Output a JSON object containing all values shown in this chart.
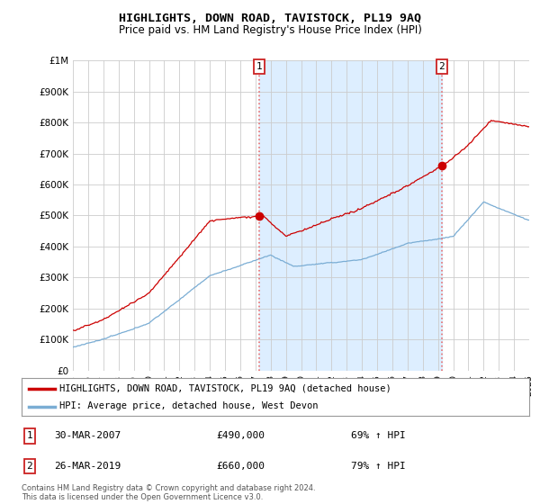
{
  "title": "HIGHLIGHTS, DOWN ROAD, TAVISTOCK, PL19 9AQ",
  "subtitle": "Price paid vs. HM Land Registry's House Price Index (HPI)",
  "ylim": [
    0,
    1000000
  ],
  "yticks": [
    0,
    100000,
    200000,
    300000,
    400000,
    500000,
    600000,
    700000,
    800000,
    900000,
    1000000
  ],
  "ytick_labels": [
    "£0",
    "£100K",
    "£200K",
    "£300K",
    "£400K",
    "£500K",
    "£600K",
    "£700K",
    "£800K",
    "£900K",
    "£1M"
  ],
  "hpi_color": "#7aadd4",
  "price_color": "#cc0000",
  "vline_color": "#e87070",
  "shade_color": "#ddeeff",
  "sale1_year": 2007.25,
  "sale1_val": 490000,
  "sale2_year": 2019.25,
  "sale2_val": 660000,
  "sale1_date": "30-MAR-2007",
  "sale1_price": "£490,000",
  "sale1_hpi": "69% ↑ HPI",
  "sale2_date": "26-MAR-2019",
  "sale2_price": "£660,000",
  "sale2_hpi": "79% ↑ HPI",
  "legend1": "HIGHLIGHTS, DOWN ROAD, TAVISTOCK, PL19 9AQ (detached house)",
  "legend2": "HPI: Average price, detached house, West Devon",
  "footnote": "Contains HM Land Registry data © Crown copyright and database right 2024.\nThis data is licensed under the Open Government Licence v3.0.",
  "background_color": "#ffffff",
  "grid_color": "#cccccc"
}
